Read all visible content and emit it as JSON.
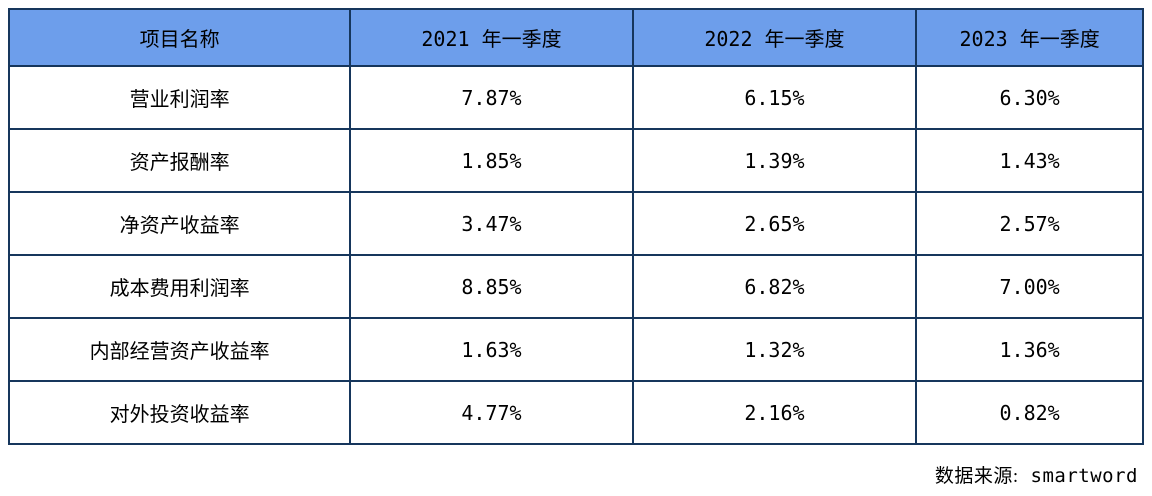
{
  "colors": {
    "header_bg": "#6d9eeb",
    "border": "#16365c",
    "text": "#000000",
    "background": "#ffffff"
  },
  "chart_data": {
    "type": "table",
    "title": "",
    "columns": [
      "项目名称",
      "2021 年一季度",
      "2022 年一季度",
      "2023 年一季度"
    ],
    "rows": [
      [
        "营业利润率",
        "7.87%",
        "6.15%",
        "6.30%"
      ],
      [
        "资产报酬率",
        "1.85%",
        "1.39%",
        "1.43%"
      ],
      [
        "净资产收益率",
        "3.47%",
        "2.65%",
        "2.57%"
      ],
      [
        "成本费用利润率",
        "8.85%",
        "6.82%",
        "7.00%"
      ],
      [
        "内部经营资产收益率",
        "1.63%",
        "1.32%",
        "1.36%"
      ],
      [
        "对外投资收益率",
        "4.77%",
        "2.16%",
        "0.82%"
      ]
    ]
  },
  "footer": {
    "source_label": "数据来源:",
    "source_value": "smartword"
  }
}
